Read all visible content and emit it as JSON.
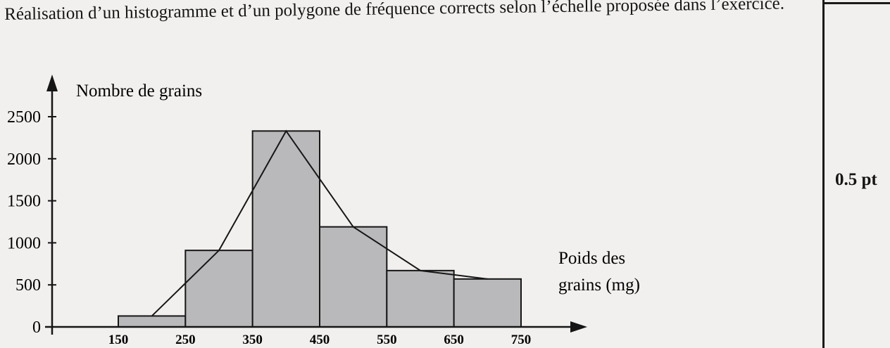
{
  "instruction": "Réalisation d’un histogramme et d’un polygone de fréquence corrects selon l’échelle proposée dans l’exercice.",
  "score": "0.5 pt",
  "chart_data": {
    "type": "bar",
    "subtype": "histogram with frequency polygon",
    "ylabel": "Nombre de grains",
    "xlabel_lines": [
      "Poids des",
      "grains (mg)"
    ],
    "ylim": [
      0,
      2500
    ],
    "yticks": [
      0,
      500,
      1000,
      1500,
      2000,
      2500
    ],
    "xticks": [
      150,
      250,
      350,
      450,
      550,
      650,
      750
    ],
    "bins": [
      {
        "from": 150,
        "to": 250,
        "value": 130
      },
      {
        "from": 250,
        "to": 350,
        "value": 910
      },
      {
        "from": 350,
        "to": 450,
        "value": 2330
      },
      {
        "from": 450,
        "to": 550,
        "value": 1190
      },
      {
        "from": 550,
        "to": 650,
        "value": 670
      },
      {
        "from": 650,
        "to": 750,
        "value": 570
      }
    ],
    "polygon": {
      "x": [
        200,
        300,
        400,
        500,
        600,
        700
      ],
      "y": [
        130,
        910,
        2330,
        1190,
        670,
        570
      ]
    },
    "colors": {
      "bar_fill": "#b9b9bb",
      "bar_stroke": "#161616",
      "line": "#161616"
    },
    "grid": false,
    "legend": "none"
  }
}
